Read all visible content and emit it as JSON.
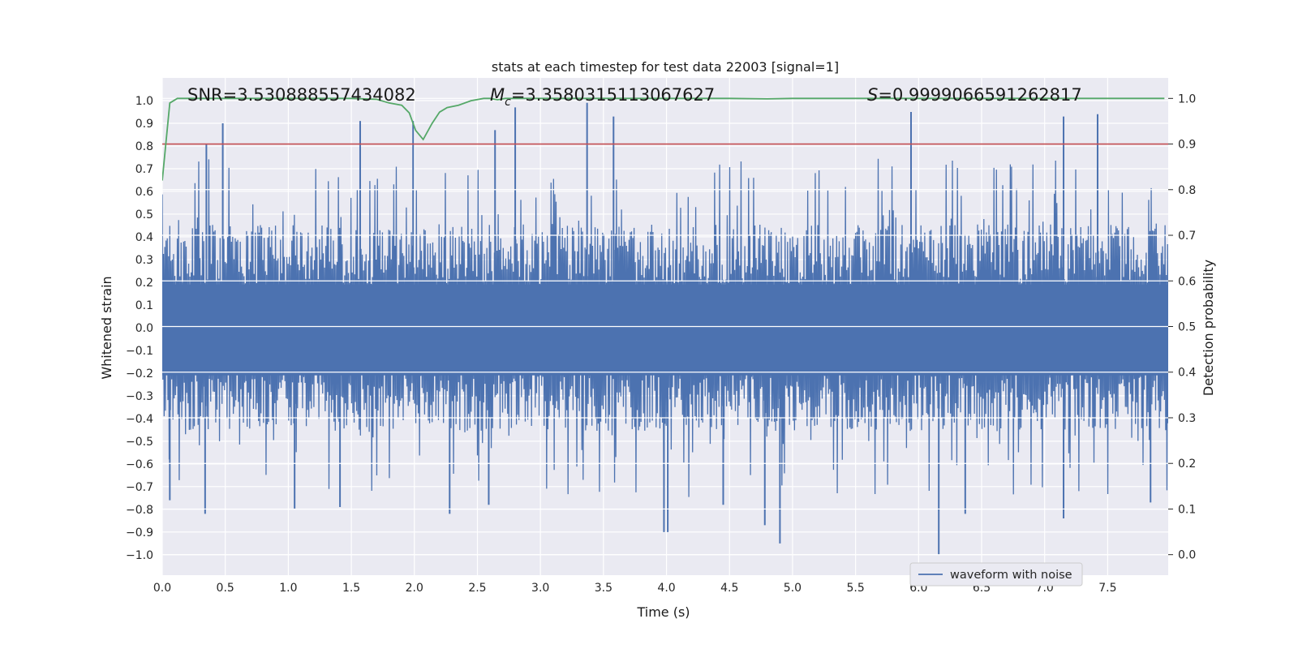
{
  "chart_data": {
    "type": "line",
    "title": "stats at each timestep for test data 22003 [signal=1]",
    "xlabel": "Time (s)",
    "ylabel": "Whitened strain",
    "y2label": "Detection probability",
    "xlim": [
      0.0,
      7.98
    ],
    "ylim": [
      -1.09,
      1.1
    ],
    "y2lim": [
      -0.045,
      1.045
    ],
    "x_ticks": [
      "0.0",
      "0.5",
      "1.0",
      "1.5",
      "2.0",
      "2.5",
      "3.0",
      "3.5",
      "4.0",
      "4.5",
      "5.0",
      "5.5",
      "6.0",
      "6.5",
      "7.0",
      "7.5"
    ],
    "y_ticks": [
      "1.0",
      "0.9",
      "0.8",
      "0.7",
      "0.6",
      "0.5",
      "0.4",
      "0.3",
      "0.2",
      "0.1",
      "0.0",
      "−0.1",
      "−0.2",
      "−0.3",
      "−0.4",
      "−0.5",
      "−0.6",
      "−0.7",
      "−0.8",
      "−0.9",
      "−1.0"
    ],
    "y2_ticks": [
      "1.0",
      "0.9",
      "0.8",
      "0.7",
      "0.6",
      "0.5",
      "0.4",
      "0.3",
      "0.2",
      "0.1",
      "0.0"
    ],
    "annotations": {
      "snr": "SNR=3.530888557434082",
      "mc_symbol": "M",
      "mc_sub": "c",
      "mc_value": "=3.3580315113067627",
      "s_symbol": "S",
      "s_value": "=0.9999066591262817"
    },
    "legend": {
      "label": "waveform with noise",
      "location": "lower-right"
    },
    "threshold_line": {
      "axis": "y2",
      "value": 0.9,
      "color": "#c44e52"
    },
    "series": [
      {
        "name": "waveform with noise",
        "axis": "y",
        "color": "#4c72b0",
        "kind": "noise",
        "x_range": [
          0.0,
          7.98
        ],
        "typical_amplitude": 0.35,
        "peaks": [
          {
            "x": 0.35,
            "y": 0.81
          },
          {
            "x": 0.48,
            "y": 0.9
          },
          {
            "x": 1.57,
            "y": 0.91
          },
          {
            "x": 1.99,
            "y": 0.91
          },
          {
            "x": 2.64,
            "y": 0.87
          },
          {
            "x": 2.8,
            "y": 0.97
          },
          {
            "x": 3.37,
            "y": 0.99
          },
          {
            "x": 3.58,
            "y": 0.93
          },
          {
            "x": 5.94,
            "y": 0.95
          },
          {
            "x": 7.15,
            "y": 0.93
          },
          {
            "x": 7.42,
            "y": 0.94
          }
        ],
        "troughs": [
          {
            "x": 0.06,
            "y": -0.76
          },
          {
            "x": 0.34,
            "y": -0.82
          },
          {
            "x": 1.05,
            "y": -0.8
          },
          {
            "x": 1.41,
            "y": -0.79
          },
          {
            "x": 2.28,
            "y": -0.82
          },
          {
            "x": 2.59,
            "y": -0.78
          },
          {
            "x": 3.98,
            "y": -0.9
          },
          {
            "x": 4.01,
            "y": -0.9
          },
          {
            "x": 4.45,
            "y": -0.78
          },
          {
            "x": 4.78,
            "y": -0.87
          },
          {
            "x": 4.9,
            "y": -0.95
          },
          {
            "x": 6.16,
            "y": -1.0
          },
          {
            "x": 6.37,
            "y": -0.82
          },
          {
            "x": 7.15,
            "y": -0.84
          },
          {
            "x": 7.84,
            "y": -0.77
          }
        ]
      },
      {
        "name": "detection probability",
        "axis": "y2",
        "color": "#55a868",
        "x": [
          0.0,
          0.06,
          0.12,
          0.3,
          0.6,
          1.0,
          1.5,
          1.7,
          1.8,
          1.9,
          1.96,
          2.01,
          2.07,
          2.14,
          2.2,
          2.26,
          2.35,
          2.45,
          2.55,
          2.6,
          2.66,
          2.72,
          2.8,
          3.0,
          3.5,
          4.0,
          4.5,
          4.8,
          5.0,
          6.0,
          7.0,
          7.95
        ],
        "values": [
          0.82,
          0.99,
          1.0,
          1.0,
          1.0,
          1.0,
          1.0,
          0.998,
          0.99,
          0.985,
          0.968,
          0.93,
          0.91,
          0.945,
          0.97,
          0.98,
          0.985,
          0.995,
          1.0,
          1.0,
          0.997,
          1.0,
          1.0,
          1.0,
          1.0,
          1.0,
          1.0,
          0.999,
          1.0,
          1.0,
          1.0,
          1.0
        ]
      }
    ]
  }
}
